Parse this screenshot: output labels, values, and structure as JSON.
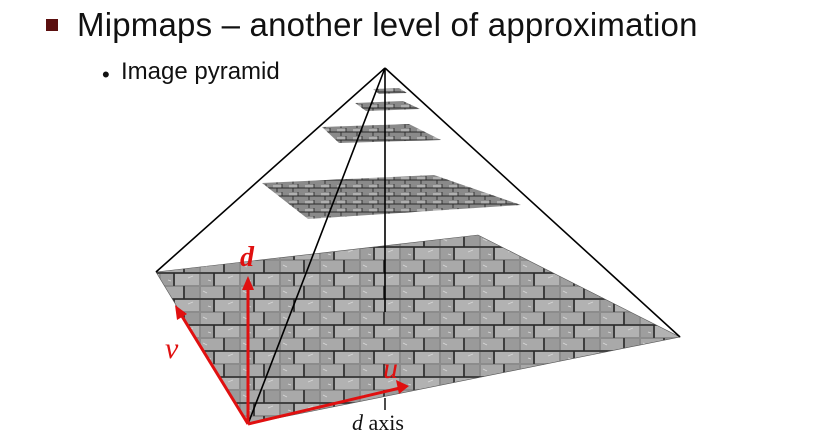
{
  "slide": {
    "title": "Mipmaps – another level of approximation",
    "subbullet_symbol": "•",
    "subbullet": "Image pyramid"
  },
  "diagram": {
    "axis_d_label": "d",
    "axis_v_label": "v",
    "axis_u_label": "u",
    "axis_caption_var": "d",
    "axis_caption_word": "axis",
    "colors": {
      "axis": "#e01010",
      "bullet": "#5b0f0f",
      "texture_base": "#8c8c8c",
      "texture_dark": "#2a2a2a",
      "edges": "#000000"
    }
  }
}
